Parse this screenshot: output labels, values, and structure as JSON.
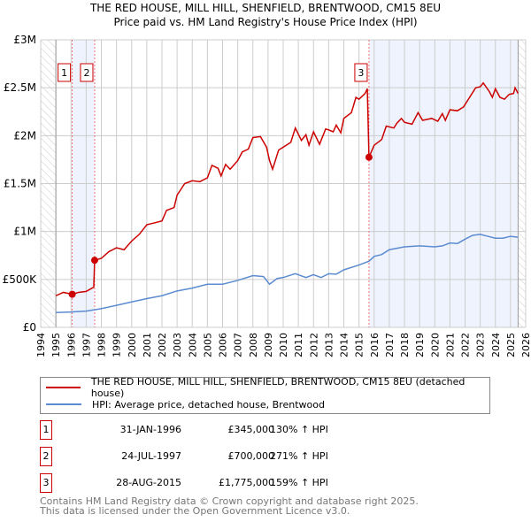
{
  "chart_data": {
    "type": "line",
    "title": "THE RED HOUSE, MILL HILL, SHENFIELD, BRENTWOOD, CM15 8EU",
    "subtitle": "Price paid vs. HM Land Registry's House Price Index (HPI)",
    "xlim": [
      1994,
      2026
    ],
    "ylim": [
      0,
      3000000
    ],
    "x_ticks": [
      "1994",
      "1995",
      "1996",
      "1997",
      "1998",
      "1999",
      "2000",
      "2001",
      "2002",
      "2003",
      "2004",
      "2005",
      "2006",
      "2007",
      "2008",
      "2009",
      "2010",
      "2011",
      "2012",
      "2013",
      "2014",
      "2015",
      "2016",
      "2017",
      "2018",
      "2019",
      "2020",
      "2021",
      "2022",
      "2023",
      "2024",
      "2025",
      "2026"
    ],
    "y_ticks": [
      {
        "v": 0,
        "label": "£0"
      },
      {
        "v": 500000,
        "label": "£500K"
      },
      {
        "v": 1000000,
        "label": "£1M"
      },
      {
        "v": 1500000,
        "label": "£1.5M"
      },
      {
        "v": 2000000,
        "label": "£2M"
      },
      {
        "v": 2500000,
        "label": "£2.5M"
      },
      {
        "v": 3000000,
        "label": "£3M"
      }
    ],
    "grid": true,
    "shaded_ranges": [
      [
        1996.08,
        1997.56
      ],
      [
        2015.66,
        2025.5
      ]
    ],
    "hatched_ranges": [
      [
        1994,
        1995
      ],
      [
        2025.5,
        2026
      ]
    ],
    "series": [
      {
        "name": "THE RED HOUSE, MILL HILL, SHENFIELD, BRENTWOOD, CM15 8EU (detached house)",
        "color": "#cc0000",
        "x": [
          1995,
          1995.5,
          1996.08,
          1996.5,
          1997,
          1997.5,
          1997.56,
          1998,
          1998.5,
          1999,
          1999.5,
          2000,
          2000.5,
          2001,
          2001.5,
          2002,
          2002.3,
          2002.8,
          2003,
          2003.5,
          2004,
          2004.5,
          2005,
          2005.3,
          2005.7,
          2005.9,
          2006.2,
          2006.5,
          2007,
          2007.3,
          2007.7,
          2008,
          2008.5,
          2008.9,
          2009.1,
          2009.3,
          2009.7,
          2010,
          2010.5,
          2010.8,
          2011.2,
          2011.5,
          2011.7,
          2012,
          2012.4,
          2012.8,
          2013,
          2013.3,
          2013.5,
          2013.8,
          2014,
          2014.5,
          2014.8,
          2015,
          2015.4,
          2015.55,
          2015.66,
          2016,
          2016.5,
          2016.8,
          2017.3,
          2017.5,
          2017.8,
          2018,
          2018.5,
          2018.9,
          2019.2,
          2019.8,
          2020.2,
          2020.5,
          2020.7,
          2021,
          2021.5,
          2021.9,
          2022.3,
          2022.7,
          2023,
          2023.2,
          2023.6,
          2023.8,
          2024,
          2024.3,
          2024.6,
          2024.9,
          2025.2,
          2025.3,
          2025.5
        ],
        "y": [
          330,
          365,
          345,
          365,
          375,
          420,
          700,
          720,
          790,
          830,
          810,
          900,
          970,
          1070,
          1090,
          1110,
          1220,
          1250,
          1380,
          1500,
          1530,
          1520,
          1560,
          1690,
          1660,
          1580,
          1700,
          1650,
          1740,
          1830,
          1860,
          1980,
          1990,
          1880,
          1740,
          1650,
          1850,
          1880,
          1930,
          2080,
          1950,
          2010,
          1900,
          2040,
          1910,
          2070,
          2060,
          2040,
          2110,
          2030,
          2180,
          2240,
          2400,
          2380,
          2440,
          2490,
          1775,
          1900,
          1960,
          2100,
          2080,
          2130,
          2180,
          2140,
          2120,
          2240,
          2160,
          2180,
          2150,
          2230,
          2160,
          2270,
          2260,
          2300,
          2400,
          2500,
          2510,
          2550,
          2460,
          2400,
          2490,
          2400,
          2380,
          2430,
          2440,
          2500,
          2440
        ]
      },
      {
        "name": "HPI: Average price, detached house, Brentwood",
        "color": "#5b8bd0",
        "x": [
          1995,
          1996,
          1997,
          1998,
          1999,
          2000,
          2001,
          2002,
          2003,
          2004,
          2005,
          2006,
          2007,
          2008,
          2008.7,
          2009.1,
          2009.6,
          2010,
          2010.8,
          2011.5,
          2012,
          2012.5,
          2013,
          2013.5,
          2014,
          2015,
          2015.66,
          2016,
          2016.5,
          2017,
          2018,
          2019,
          2020,
          2020.5,
          2021,
          2021.5,
          2022,
          2022.5,
          2023,
          2023.5,
          2024,
          2024.5,
          2025,
          2025.5
        ],
        "y": [
          155,
          160,
          170,
          195,
          230,
          265,
          300,
          330,
          380,
          410,
          450,
          450,
          490,
          540,
          530,
          450,
          510,
          520,
          560,
          520,
          550,
          520,
          560,
          555,
          600,
          650,
          690,
          740,
          760,
          810,
          840,
          850,
          840,
          850,
          880,
          875,
          920,
          960,
          970,
          950,
          930,
          930,
          950,
          940
        ]
      }
    ],
    "sales": [
      {
        "n": "1",
        "x": 1996.08,
        "y": 345,
        "date": "31-JAN-1996",
        "price": "£345,000",
        "hpi": "130% ↑ HPI"
      },
      {
        "n": "2",
        "x": 1997.56,
        "y": 700,
        "date": "24-JUL-1997",
        "price": "£700,000",
        "hpi": "271% ↑ HPI"
      },
      {
        "n": "3",
        "x": 2015.66,
        "y": 1775,
        "date": "28-AUG-2015",
        "price": "£1,775,000",
        "hpi": "159% ↑ HPI"
      }
    ],
    "y_units": "£K"
  },
  "footer": {
    "line1": "Contains HM Land Registry data © Crown copyright and database right 2025.",
    "line2": "This data is licensed under the Open Government Licence v3.0."
  }
}
